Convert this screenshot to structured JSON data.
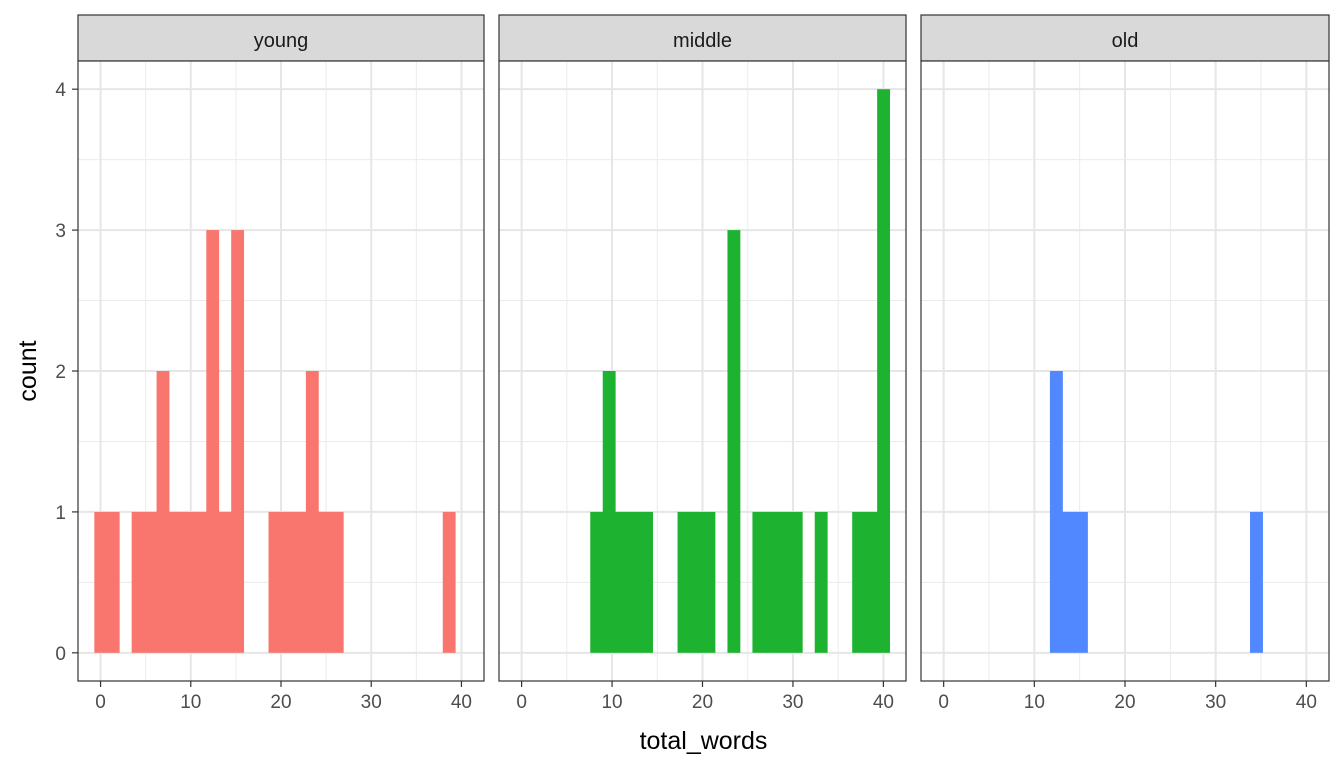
{
  "chart_data": {
    "type": "bar",
    "title": "",
    "xlabel": "total_words",
    "ylabel": "count",
    "xlim": [
      -2.5,
      42.5
    ],
    "ylim": [
      -0.2,
      4.2
    ],
    "x_ticks": [
      0,
      10,
      20,
      30,
      40
    ],
    "y_ticks": [
      0,
      1,
      2,
      3,
      4
    ],
    "bin_width": 1.38,
    "grid": true,
    "legend": "none",
    "facets": [
      {
        "name": "young",
        "color": "#F8766D",
        "bins": [
          {
            "x": 0.0,
            "count": 1
          },
          {
            "x": 1.38,
            "count": 1
          },
          {
            "x": 4.14,
            "count": 1
          },
          {
            "x": 5.52,
            "count": 1
          },
          {
            "x": 6.9,
            "count": 2
          },
          {
            "x": 8.28,
            "count": 1
          },
          {
            "x": 9.66,
            "count": 1
          },
          {
            "x": 11.03,
            "count": 1
          },
          {
            "x": 12.41,
            "count": 3
          },
          {
            "x": 13.79,
            "count": 1
          },
          {
            "x": 15.17,
            "count": 3
          },
          {
            "x": 19.31,
            "count": 1
          },
          {
            "x": 20.69,
            "count": 1
          },
          {
            "x": 22.07,
            "count": 1
          },
          {
            "x": 23.45,
            "count": 2
          },
          {
            "x": 24.83,
            "count": 1
          },
          {
            "x": 26.21,
            "count": 1
          },
          {
            "x": 38.62,
            "count": 1
          }
        ]
      },
      {
        "name": "middle",
        "color": "#1DB330",
        "bins": [
          {
            "x": 8.28,
            "count": 1
          },
          {
            "x": 9.66,
            "count": 2
          },
          {
            "x": 11.03,
            "count": 1
          },
          {
            "x": 12.41,
            "count": 1
          },
          {
            "x": 13.79,
            "count": 1
          },
          {
            "x": 17.93,
            "count": 1
          },
          {
            "x": 19.31,
            "count": 1
          },
          {
            "x": 20.69,
            "count": 1
          },
          {
            "x": 23.45,
            "count": 3
          },
          {
            "x": 26.21,
            "count": 1
          },
          {
            "x": 27.59,
            "count": 1
          },
          {
            "x": 28.97,
            "count": 1
          },
          {
            "x": 30.34,
            "count": 1
          },
          {
            "x": 33.1,
            "count": 1
          },
          {
            "x": 37.24,
            "count": 1
          },
          {
            "x": 38.62,
            "count": 1
          },
          {
            "x": 40.0,
            "count": 4
          }
        ]
      },
      {
        "name": "old",
        "color": "#5188FF",
        "bins": [
          {
            "x": 12.41,
            "count": 2
          },
          {
            "x": 13.79,
            "count": 1
          },
          {
            "x": 15.17,
            "count": 1
          },
          {
            "x": 34.48,
            "count": 1
          }
        ]
      }
    ]
  }
}
